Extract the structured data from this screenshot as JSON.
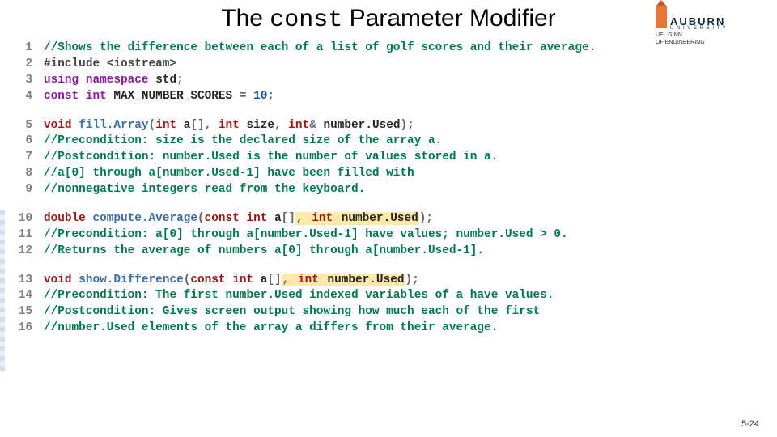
{
  "colors": {
    "comment": "#007a4d",
    "preproc": "#444444",
    "keyword": "#8b1a9e",
    "type": "#a31515",
    "ident": "#262626",
    "punct": "#666666",
    "number": "#1750c4",
    "funcdecl": "#3a6ea5"
  },
  "title": {
    "pre": "The ",
    "mono": "const",
    "post": " Parameter Modifier"
  },
  "logo": {
    "brand": "AUBURN",
    "univ": "U N I V E R S I T Y",
    "college1": "UEL GINN",
    "college2": "OF ENGINEERING"
  },
  "pagefoot": "5-24",
  "blocks": [
    [
      {
        "n": "1",
        "tokens": [
          [
            "//Shows the difference between each of a list of golf scores and their average.",
            "comment"
          ]
        ]
      },
      {
        "n": "2",
        "tokens": [
          [
            "#include <iostream>",
            "preproc"
          ]
        ]
      },
      {
        "n": "3",
        "tokens": [
          [
            "using namespace ",
            "keyword"
          ],
          [
            "std",
            "ident"
          ],
          [
            ";",
            "punct"
          ]
        ]
      },
      {
        "n": "4",
        "tokens": [
          [
            "const int ",
            "keyword"
          ],
          [
            "MAX_NUMBER_SCORES ",
            "ident"
          ],
          [
            "= ",
            "punct"
          ],
          [
            "10",
            "number"
          ],
          [
            ";",
            "punct"
          ]
        ]
      }
    ],
    [
      {
        "n": "5",
        "tokens": [
          [
            "void ",
            "type"
          ],
          [
            "fill.Array",
            "funcdecl"
          ],
          [
            "(",
            "punct"
          ],
          [
            "int ",
            "type"
          ],
          [
            "a",
            "ident"
          ],
          [
            "[], ",
            "punct"
          ],
          [
            "int ",
            "type"
          ],
          [
            "size",
            "ident"
          ],
          [
            ", ",
            "punct"
          ],
          [
            "int",
            "type"
          ],
          [
            "& ",
            "punct"
          ],
          [
            "number.Used",
            "ident"
          ],
          [
            ");",
            "punct"
          ]
        ]
      },
      {
        "n": "6",
        "tokens": [
          [
            "//Precondition: size is the declared size of the array a.",
            "comment"
          ]
        ]
      },
      {
        "n": "7",
        "tokens": [
          [
            "//Postcondition: number.Used is the number of values stored in a.",
            "comment"
          ]
        ]
      },
      {
        "n": "8",
        "tokens": [
          [
            "//a[0] through a[number.Used-1] have been filled with",
            "comment"
          ]
        ]
      },
      {
        "n": "9",
        "tokens": [
          [
            "//nonnegative integers read from the keyboard.",
            "comment"
          ]
        ]
      }
    ],
    [
      {
        "n": "10",
        "tokens": [
          [
            "double ",
            "type"
          ],
          [
            "compute.Average",
            "funcdecl"
          ],
          [
            "(",
            "punct"
          ],
          [
            "const int ",
            "type"
          ],
          [
            "a",
            "ident"
          ],
          [
            "[]",
            "punct"
          ],
          [
            ", ",
            "punct",
            true
          ],
          [
            "int ",
            "type",
            true
          ],
          [
            "number.Used",
            "ident",
            true
          ],
          [
            ")",
            "punct"
          ],
          [
            ";",
            "punct"
          ]
        ]
      },
      {
        "n": "11",
        "tokens": [
          [
            "//Precondition: a[0] through a[number.Used-1] have values; number.Used > 0.",
            "comment"
          ]
        ]
      },
      {
        "n": "12",
        "tokens": [
          [
            "//Returns the average of numbers a[0] through a[number.Used-1].",
            "comment"
          ]
        ]
      }
    ],
    [
      {
        "n": "13",
        "tokens": [
          [
            "void ",
            "type"
          ],
          [
            "show.Difference",
            "funcdecl"
          ],
          [
            "(",
            "punct"
          ],
          [
            "const int ",
            "type"
          ],
          [
            "a",
            "ident"
          ],
          [
            "[]",
            "punct"
          ],
          [
            ", ",
            "punct",
            true
          ],
          [
            "int ",
            "type",
            true
          ],
          [
            "number.Used",
            "ident",
            true
          ],
          [
            ")",
            "punct"
          ],
          [
            ";",
            "punct"
          ]
        ]
      },
      {
        "n": "14",
        "tokens": [
          [
            "//Precondition: The first number.Used indexed variables of a have values.",
            "comment"
          ]
        ]
      },
      {
        "n": "15",
        "tokens": [
          [
            "//Postcondition: Gives screen output showing how much each of the first",
            "comment"
          ]
        ]
      },
      {
        "n": "16",
        "tokens": [
          [
            "//number.Used elements of the array a differs from their average.",
            "comment"
          ]
        ]
      }
    ]
  ]
}
